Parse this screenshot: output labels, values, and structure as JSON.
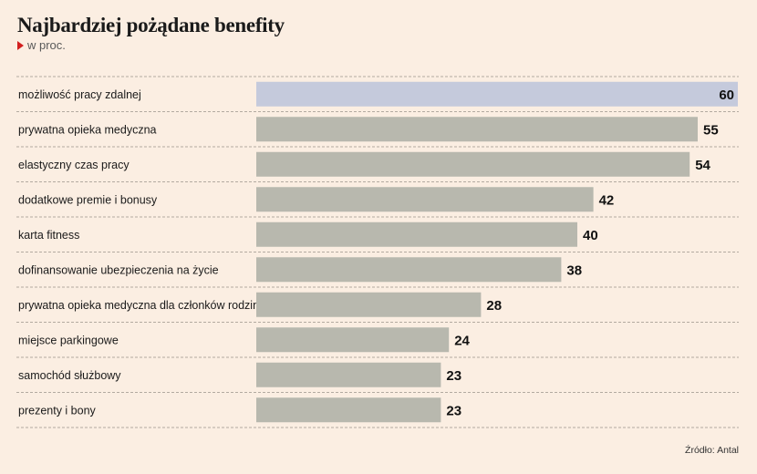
{
  "title": "Najbardziej pożądane benefity",
  "subtitle": "w proc.",
  "source": "Źródło: Antal",
  "colors": {
    "background": "#fbeee2",
    "highlight_bar": "#c5cadc",
    "bar": "#b8b8ae",
    "gridline": "#b3aaa0"
  },
  "chart_data": {
    "type": "bar",
    "orientation": "horizontal",
    "categories": [
      "możliwość pracy zdalnej",
      "prywatna opieka medyczna",
      "elastyczny czas pracy",
      "dodatkowe premie i bonusy",
      "karta fitness",
      "dofinansowanie ubezpieczenia na życie",
      "prywatna opieka medyczna dla członków rodziny",
      "miejsce parkingowe",
      "samochód służbowy",
      "prezenty i bony"
    ],
    "values": [
      60,
      55,
      54,
      42,
      40,
      38,
      28,
      24,
      23,
      23
    ],
    "highlight_index": 0,
    "xlim": [
      0,
      60
    ],
    "gridlines": "dashed row separators"
  }
}
